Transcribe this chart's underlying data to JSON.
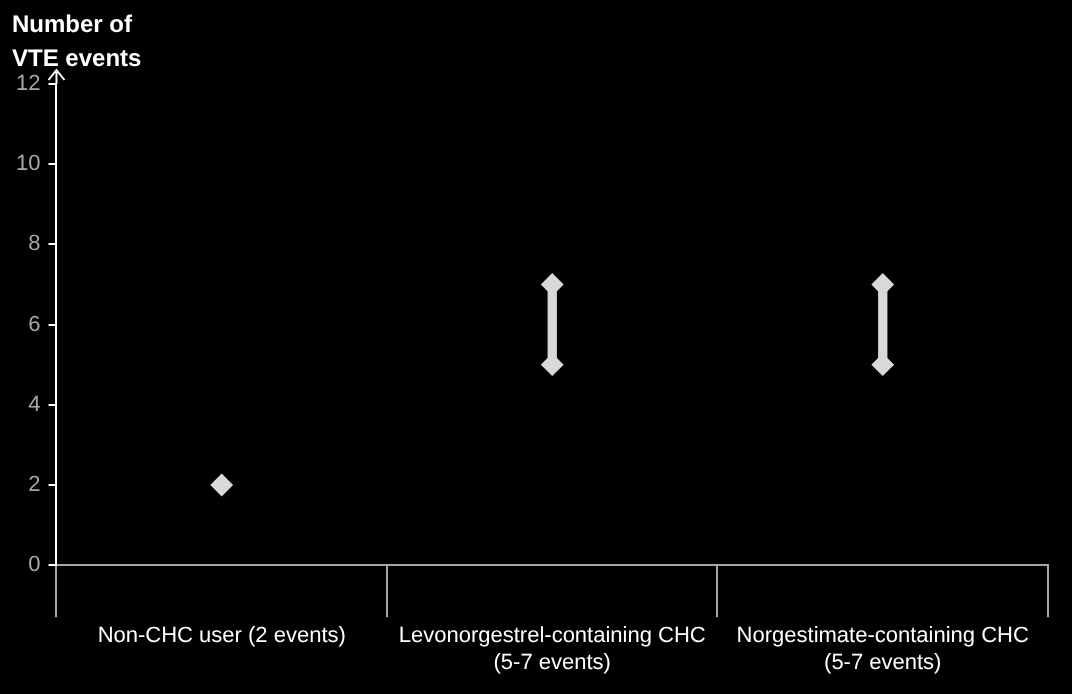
{
  "chart_data": {
    "type": "bar",
    "ylabel": "Number of\nVTE events",
    "categories": [
      "Non-CHC user (2 events)",
      "Levonorgestrel-containing CHC\n(5-7 events)",
      "Norgestimate-containing CHC\n(5-7 events)"
    ],
    "series": [
      {
        "color": "#d9d9d9",
        "base": [
          null,
          5,
          5
        ],
        "values": [
          null,
          2,
          2
        ]
      },
      {
        "type": "scatter",
        "color": "#d9d9d9",
        "marker": "diamond",
        "x": [
          "Non-CHC user (2 events)",
          "Levonorgestrel-containing CHC\n(5-7 events)",
          "Levonorgestrel-containing CHC\n(5-7 events)",
          "Norgestimate-containing CHC\n(5-7 events)",
          "Norgestimate-containing CHC\n(5-7 events)"
        ],
        "values": [
          2,
          5,
          7,
          5,
          7
        ]
      }
    ],
    "ylim": [
      0,
      12
    ],
    "yticks": [
      0,
      2,
      4,
      6,
      8,
      10,
      12
    ],
    "grid": false,
    "legend": false
  }
}
